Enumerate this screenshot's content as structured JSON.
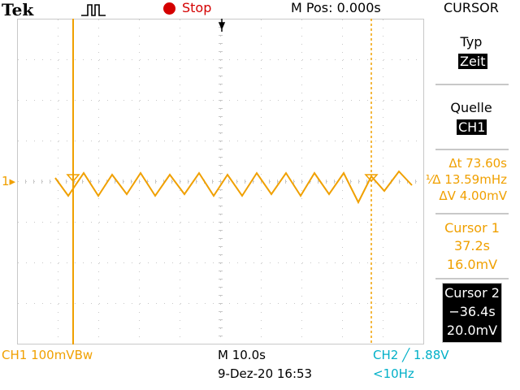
{
  "header": {
    "brand": "Tek",
    "trigger_icon": "trigger-pulse-icon",
    "run_state": "Stop",
    "mpos": "M Pos: 0.000s"
  },
  "menu": {
    "title": "CURSOR",
    "type_label": "Typ",
    "type_value": "Zeit",
    "source_label": "Quelle",
    "source_value": "CH1"
  },
  "measurements": {
    "delta_t": "73.60s",
    "inv_delta_t": "13.59mHz",
    "delta_v": "4.00mV"
  },
  "cursor1": {
    "label": "Cursor 1",
    "time": "37.2s",
    "voltage": "16.0mV"
  },
  "cursor2": {
    "label": "Cursor 2",
    "time": "−36.4s",
    "voltage": "20.0mV"
  },
  "status": {
    "ch1_scale": "CH1  100mVBw",
    "timebase": "M 10.0s",
    "datetime": "9-Dez-20 16:53",
    "trigger": "CH2 ╱ 1.88V",
    "freq": "<10Hz"
  },
  "ch1_marker": "1",
  "colors": {
    "ch1": "#f0a000",
    "ch2": "#00b0c8",
    "stop": "#d40000",
    "grid": "#c8c8c8"
  }
}
